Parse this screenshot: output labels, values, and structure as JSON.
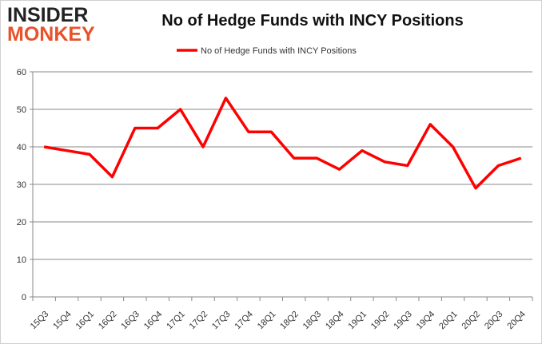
{
  "logo": {
    "line1": "INSIDER",
    "line2": "MONKEY"
  },
  "chart_data": {
    "type": "line",
    "title": "No of Hedge Funds with INCY Positions",
    "categories": [
      "15Q3",
      "15Q4",
      "16Q1",
      "16Q2",
      "16Q3",
      "16Q4",
      "17Q1",
      "17Q2",
      "17Q3",
      "17Q4",
      "18Q1",
      "18Q2",
      "18Q3",
      "18Q4",
      "19Q1",
      "19Q2",
      "19Q3",
      "19Q4",
      "20Q1",
      "20Q2",
      "20Q3",
      "20Q4"
    ],
    "series": [
      {
        "name": "No of Hedge Funds with INCY Positions",
        "color": "#ff0000",
        "values": [
          40,
          39,
          38,
          32,
          45,
          45,
          50,
          40,
          53,
          44,
          44,
          37,
          37,
          34,
          39,
          36,
          35,
          46,
          40,
          29,
          35,
          37
        ]
      }
    ],
    "ylim": [
      0,
      60
    ],
    "yticks": [
      0,
      10,
      20,
      30,
      40,
      50,
      60
    ],
    "grid": true,
    "legend": "top-center"
  }
}
